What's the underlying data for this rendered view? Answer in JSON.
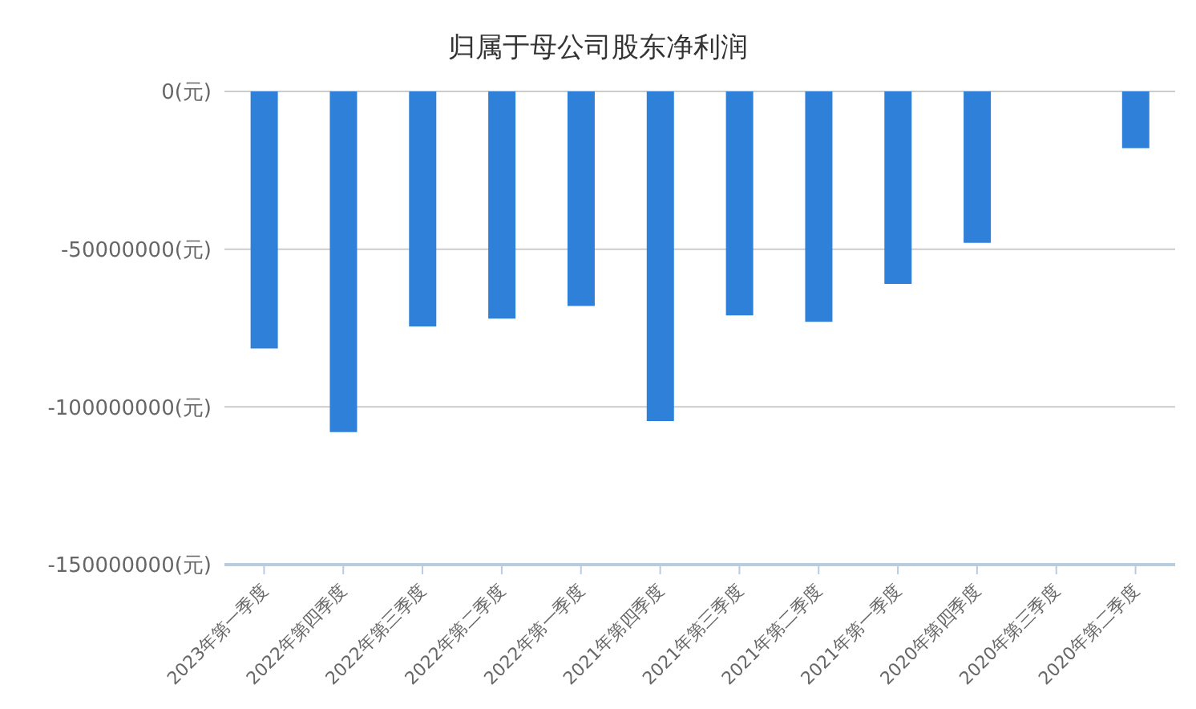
{
  "chart_data": {
    "type": "bar",
    "title": "归属于母公司股东净利润",
    "categories": [
      "2023年第一季度",
      "2022年第四季度",
      "2022年第三季度",
      "2022年第二季度",
      "2022年第一季度",
      "2021年第四季度",
      "2021年第三季度",
      "2021年第二季度",
      "2021年第一季度",
      "2020年第四季度",
      "2020年第三季度",
      "2020年第二季度"
    ],
    "values": [
      -81500000,
      -108000000,
      -74500000,
      -72000000,
      -68000000,
      -104500000,
      -71000000,
      -73000000,
      -61000000,
      -48000000,
      0,
      -18000000
    ],
    "color": "#2f80d9",
    "ylim": [
      -150000000,
      0
    ],
    "yticks": [
      {
        "value": 0,
        "label": "0(元)"
      },
      {
        "value": -50000000,
        "label": "-50000000(元)"
      },
      {
        "value": -100000000,
        "label": "-100000000(元)"
      },
      {
        "value": -150000000,
        "label": "-150000000(元)"
      }
    ],
    "grid": "y"
  }
}
